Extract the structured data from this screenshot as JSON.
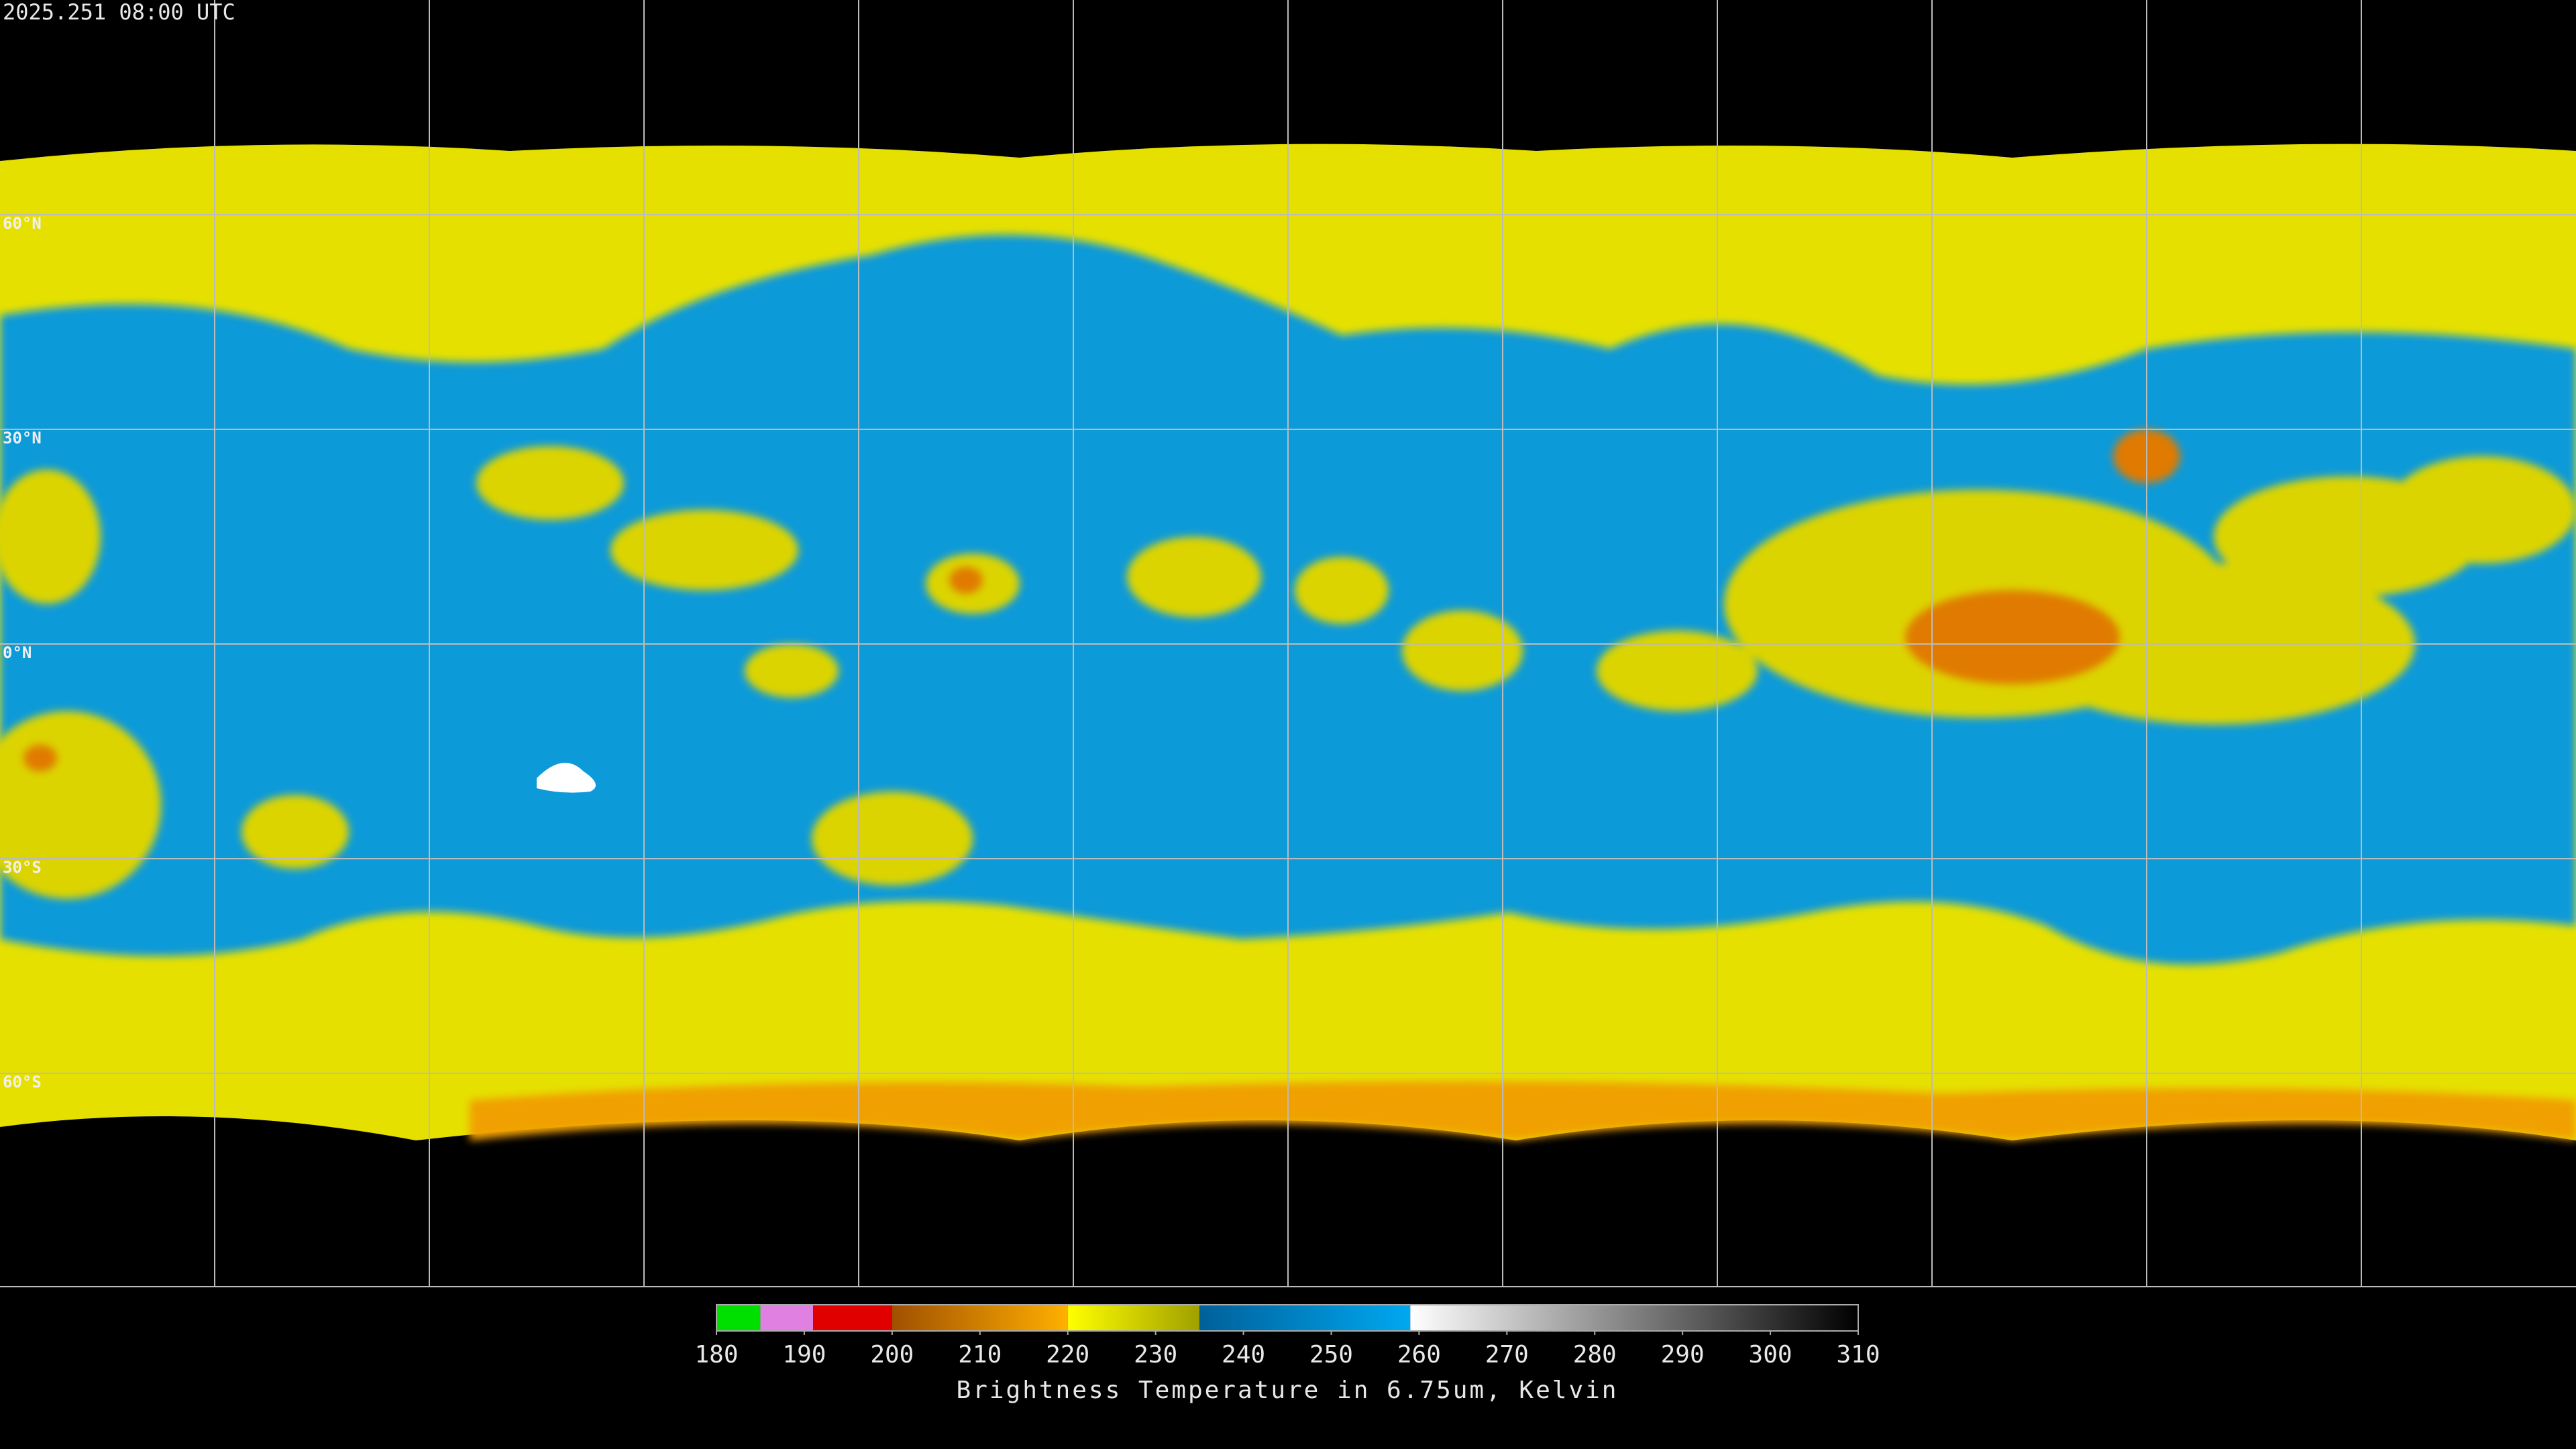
{
  "header": {
    "timestamp": "2025.251 08:00 UTC"
  },
  "map": {
    "lat_labels": [
      "60°N",
      "30°N",
      "0°N",
      "30°S",
      "60°S"
    ]
  },
  "colorbar": {
    "title": "Brightness Temperature in 6.75um, Kelvin",
    "range": [
      180,
      310
    ],
    "ticks": [
      180,
      190,
      200,
      210,
      220,
      230,
      240,
      250,
      260,
      270,
      280,
      290,
      300,
      310
    ],
    "segments": [
      {
        "from": 180,
        "to": 185,
        "colors": [
          "#00e000",
          "#00e000"
        ]
      },
      {
        "from": 185,
        "to": 191,
        "colors": [
          "#e080e0",
          "#e080e0"
        ]
      },
      {
        "from": 191,
        "to": 200,
        "colors": [
          "#e00000",
          "#e00000"
        ]
      },
      {
        "from": 200,
        "to": 220,
        "colors": [
          "#a05000",
          "#ffb000"
        ]
      },
      {
        "from": 220,
        "to": 235,
        "colors": [
          "#ffff00",
          "#a0a000"
        ]
      },
      {
        "from": 235,
        "to": 259,
        "colors": [
          "#00609a",
          "#00a8f0"
        ]
      },
      {
        "from": 259,
        "to": 310,
        "colors": [
          "#ffffff",
          "#000000"
        ]
      }
    ]
  }
}
